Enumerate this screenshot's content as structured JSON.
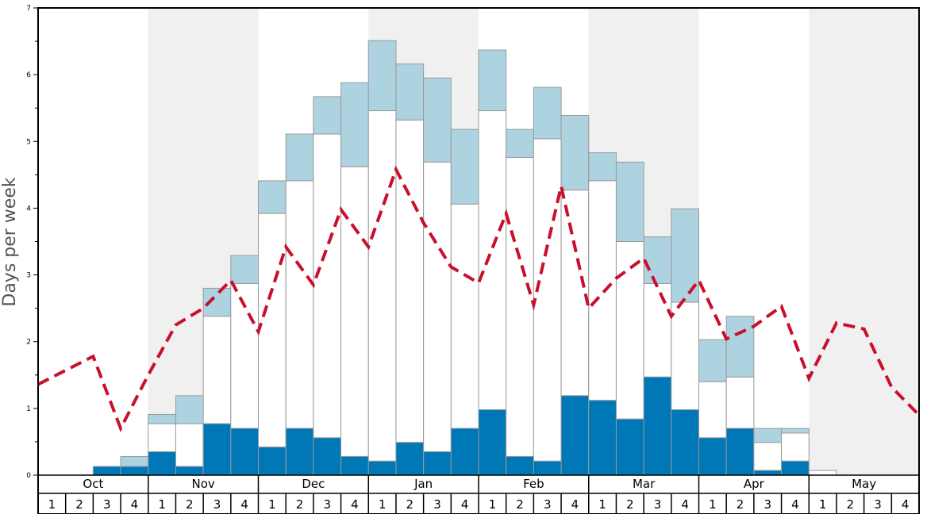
{
  "chart_data": {
    "type": "bar",
    "ylabel": "Days per week",
    "ylim": [
      0,
      7
    ],
    "yticks": [
      "0",
      "1",
      "2",
      "3",
      "4",
      "5",
      "6",
      "7"
    ],
    "months": [
      "Oct",
      "Nov",
      "Dec",
      "Jan",
      "Feb",
      "Mar",
      "Apr",
      "May"
    ],
    "week_labels": [
      "1",
      "2",
      "3",
      "4"
    ],
    "colors": {
      "dark": "#0077b6",
      "white": "#ffffff",
      "light": "#aed3e0",
      "line": "#c8102e",
      "shade": "#f0f0f0",
      "bar_edge": "#999999"
    },
    "stack_bottom": [
      0,
      0,
      0.13,
      0.13,
      0.35,
      0.13,
      0.77,
      0.7,
      0.42,
      0.7,
      0.56,
      0.28,
      0.21,
      0.49,
      0.35,
      0.7,
      0.98,
      0.28,
      0.21,
      1.19,
      1.12,
      0.84,
      1.47,
      0.98,
      0.56,
      0.7,
      0.07,
      0.21,
      0,
      0,
      0,
      0
    ],
    "stack_middle_top": [
      0,
      0,
      0.13,
      0.13,
      0.77,
      0.77,
      2.38,
      2.87,
      3.92,
      4.41,
      5.11,
      4.62,
      5.46,
      5.32,
      4.69,
      4.06,
      5.46,
      4.76,
      5.04,
      4.27,
      4.41,
      3.5,
      2.87,
      2.59,
      1.4,
      1.47,
      0.49,
      0.63,
      0.07,
      0,
      0,
      0
    ],
    "stack_total": [
      0,
      0,
      0.13,
      0.28,
      0.91,
      1.19,
      2.8,
      3.29,
      4.41,
      5.11,
      5.67,
      5.88,
      6.51,
      6.16,
      5.95,
      5.18,
      6.37,
      5.18,
      5.81,
      5.39,
      4.83,
      4.69,
      3.57,
      3.99,
      2.03,
      2.38,
      0.7,
      0.7,
      0.07,
      0,
      0,
      0
    ],
    "line_values": [
      1.36,
      1.57,
      1.78,
      0.7,
      1.5,
      2.25,
      2.5,
      2.92,
      2.15,
      3.42,
      2.85,
      3.98,
      3.42,
      4.58,
      3.78,
      3.12,
      2.88,
      3.92,
      2.55,
      4.33,
      2.5,
      2.95,
      3.25,
      2.38,
      2.92,
      2.04,
      2.23,
      2.53,
      1.45,
      2.28,
      2.19,
      1.32,
      0.9
    ]
  }
}
